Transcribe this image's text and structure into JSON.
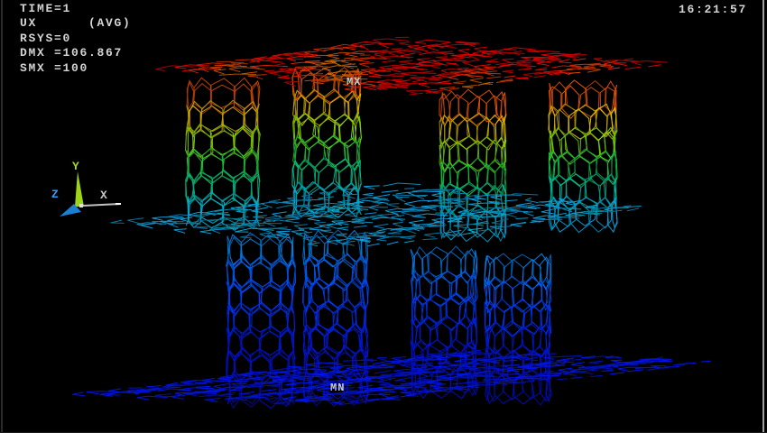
{
  "window": {
    "time_display": "16:21:57"
  },
  "solution_info": {
    "lines": [
      "TIME=1",
      "UX      (AVG)",
      "RSYS=0",
      "DMX =106.867",
      "SMX =100"
    ]
  },
  "annotations": {
    "max_label": "MX",
    "min_label": "MN"
  },
  "triad": {
    "x_label": "X",
    "y_label": "Y",
    "z_label": "Z",
    "x_color": "#c8c8c8",
    "y_color": "#a8dc1e",
    "z_color": "#2e9bff",
    "x_axis_color": "#c0c0c0",
    "y_arrow_color": "#9fd416",
    "z_arrow_color": "#1b7fd4"
  },
  "viz": {
    "background": "#000000",
    "border_left_color": "#2b2b2b",
    "border_right_color": "#a0a0a0",
    "text_color": "#d4d4d4",
    "label_color": "#c9c9c9",
    "sheet_top_color": "#cc0000",
    "sheet_top_junction_color": "#bb9900",
    "sheet_mid_color": "#0d93c9",
    "sheet_mid_junction_color": "#00b09a",
    "sheet_bottom_color": "#0013cf",
    "upper_tube_stops": [
      "#d40000",
      "#cc6a00",
      "#bcbc00",
      "#58c000",
      "#00b050",
      "#00ab96",
      "#0096cc"
    ],
    "lower_tube_stops": [
      "#0092cc",
      "#0055e0",
      "#0033e8",
      "#0016cc",
      "#000bb4"
    ]
  }
}
